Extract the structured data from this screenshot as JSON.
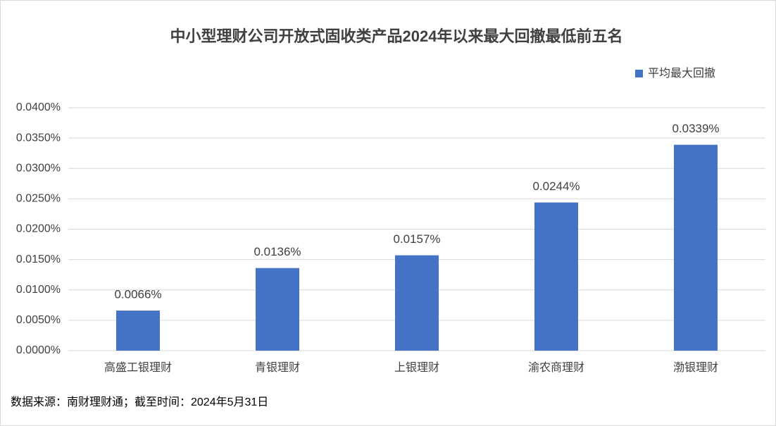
{
  "chart_data": {
    "type": "bar",
    "title": "中小型理财公司开放式固收类产品2024年以来最大回撤最低前五名",
    "categories": [
      "高盛工银理财",
      "青银理财",
      "上银理财",
      "渝农商理财",
      "渤银理财"
    ],
    "series": [
      {
        "name": "平均最大回撤",
        "color": "#4472c4",
        "values": [
          0.0066,
          0.0136,
          0.0157,
          0.0244,
          0.0339
        ],
        "value_labels": [
          "0.0066%",
          "0.0136%",
          "0.0157%",
          "0.0244%",
          "0.0339%"
        ]
      }
    ],
    "ylim": [
      0,
      0.04
    ],
    "yticks": [
      {
        "value": 0,
        "label": "0.0000%"
      },
      {
        "value": 0.005,
        "label": "0.0050%"
      },
      {
        "value": 0.01,
        "label": "0.0100%"
      },
      {
        "value": 0.015,
        "label": "0.0150%"
      },
      {
        "value": 0.02,
        "label": "0.0200%"
      },
      {
        "value": 0.025,
        "label": "0.0250%"
      },
      {
        "value": 0.03,
        "label": "0.0300%"
      },
      {
        "value": 0.035,
        "label": "0.0350%"
      },
      {
        "value": 0.04,
        "label": "0.0400%"
      }
    ],
    "grid": true,
    "legend": "top-right",
    "source": "数据来源：南财理财通；截至时间：2024年5月31日"
  }
}
